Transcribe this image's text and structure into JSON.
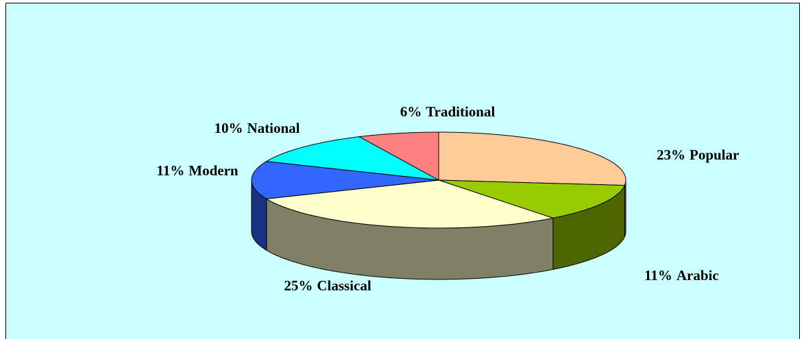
{
  "chart_data": {
    "type": "pie3d",
    "categories": [
      "Popular",
      "Arabic",
      "Classical",
      "Modern",
      "National",
      "Traditional"
    ],
    "values": [
      23,
      11,
      25,
      11,
      10,
      6
    ],
    "value_labels": [
      "23%",
      "11%",
      "25%",
      "11%",
      "10%",
      "6%"
    ],
    "colors": [
      "#ffcc99",
      "#99cc00",
      "#ffffcc",
      "#3366ff",
      "#00ffff",
      "#ff8080"
    ],
    "side_colors": [
      "#806648",
      "#4d6600",
      "#808066",
      "#1a3380",
      "#008080",
      "#804040"
    ]
  }
}
